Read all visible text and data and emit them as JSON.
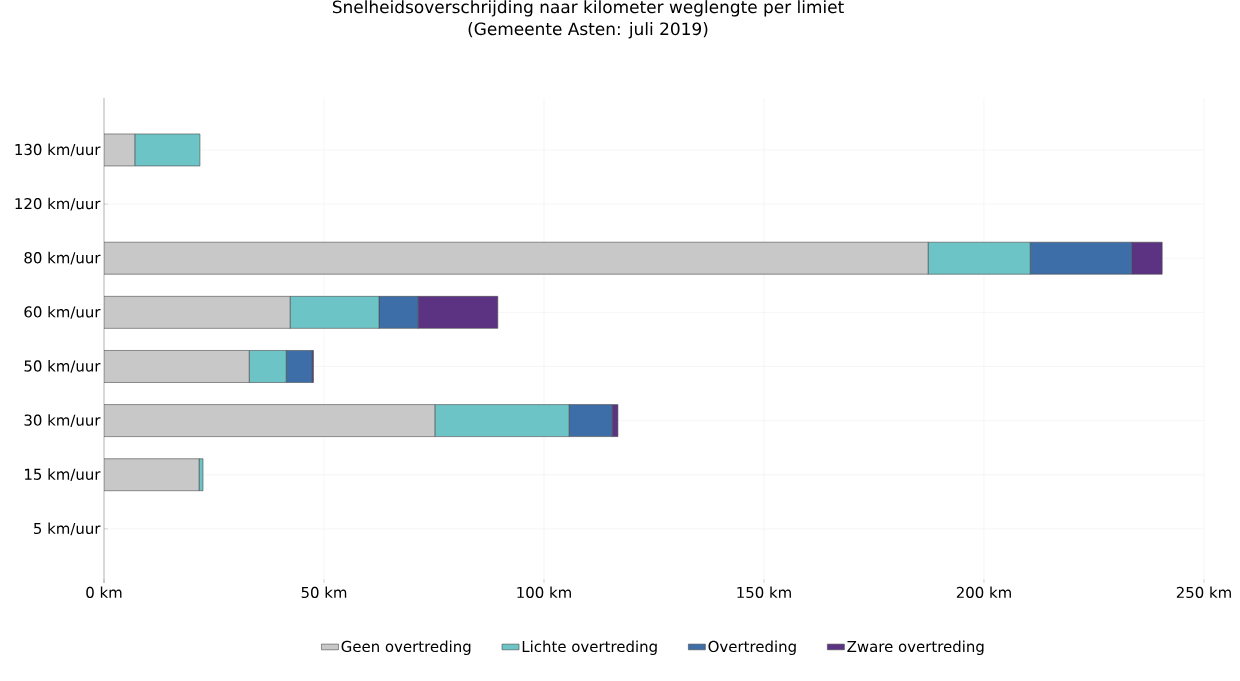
{
  "chart_data": {
    "type": "bar",
    "orientation": "horizontal",
    "stacked": true,
    "title": "Snelheidsoverschrijding naar kilometer weglengte per limiet",
    "subtitle": "(Gemeente Asten: juli 2019)",
    "categories": [
      "130 km/uur",
      "120 km/uur",
      "80 km/uur",
      "60 km/uur",
      "50 km/uur",
      "30 km/uur",
      "15 km/uur",
      "5 km/uur"
    ],
    "series": [
      {
        "name": "Geen overtreding",
        "color": "#c8c8c8",
        "values": [
          7,
          null,
          187.3,
          42.3,
          33,
          75.2,
          21.6,
          null
        ]
      },
      {
        "name": "Lichte overtreding",
        "color": "#6cc4c6",
        "values": [
          14.8,
          null,
          23.2,
          20.2,
          8.4,
          30.5,
          0.9,
          null
        ]
      },
      {
        "name": "Overtreding",
        "color": "#3e6ea8",
        "values": [
          null,
          null,
          23.1,
          8.9,
          5.9,
          9.8,
          null,
          null
        ]
      },
      {
        "name": "Zware overtreding",
        "color": "#5c3382",
        "values": [
          null,
          null,
          6.9,
          18.1,
          0.3,
          1.3,
          null,
          null
        ]
      }
    ],
    "xlim": [
      0,
      250
    ],
    "xticks": [
      {
        "value": 0,
        "label": "0 km"
      },
      {
        "value": 50,
        "label": "50 km"
      },
      {
        "value": 100,
        "label": "100 km"
      },
      {
        "value": 150,
        "label": "150 km"
      },
      {
        "value": 200,
        "label": "200 km"
      },
      {
        "value": 250,
        "label": "250 km"
      }
    ],
    "grid": true,
    "legend": "bottom"
  }
}
